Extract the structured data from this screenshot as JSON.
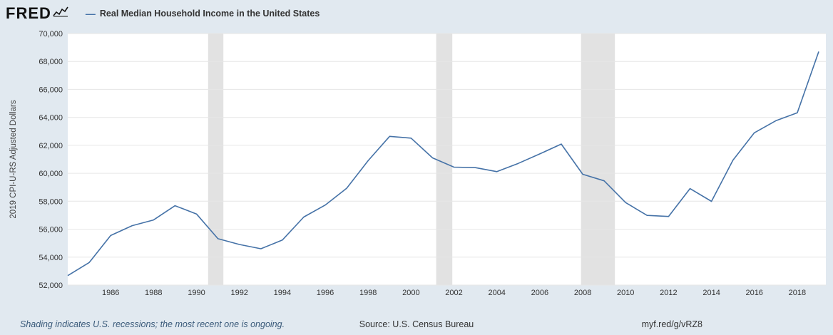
{
  "header": {
    "logo_text": "FRED",
    "legend_dash": "—"
  },
  "chart_data": {
    "type": "line",
    "title": "Real Median Household Income in the United States",
    "ylabel": "2019 CPI-U-RS Adjusted Dollars",
    "xlabel": "",
    "x": [
      1984,
      1985,
      1986,
      1987,
      1988,
      1989,
      1990,
      1991,
      1992,
      1993,
      1994,
      1995,
      1996,
      1997,
      1998,
      1999,
      2000,
      2001,
      2002,
      2003,
      2004,
      2005,
      2006,
      2007,
      2008,
      2009,
      2010,
      2011,
      2012,
      2013,
      2014,
      2015,
      2016,
      2017,
      2018,
      2019
    ],
    "values": [
      52679,
      53616,
      55547,
      56251,
      56661,
      57683,
      57087,
      55322,
      54905,
      54600,
      55221,
      56871,
      57724,
      58931,
      60904,
      62641,
      62512,
      61102,
      60440,
      60402,
      60118,
      60708,
      61389,
      62090,
      59930,
      59458,
      57904,
      56988,
      56912,
      58904,
      57992,
      60932,
      62898,
      63761,
      64324,
      68703
    ],
    "xlim": [
      1984,
      2019
    ],
    "ylim": [
      52000,
      70000
    ],
    "y_tick_step": 2000,
    "x_ticks": [
      1986,
      1988,
      1990,
      1992,
      1994,
      1996,
      1998,
      2000,
      2002,
      2004,
      2006,
      2008,
      2010,
      2012,
      2014,
      2016,
      2018
    ],
    "recessions": [
      [
        1990.54,
        1991.25
      ],
      [
        2001.17,
        2001.92
      ],
      [
        2007.92,
        2009.5
      ]
    ],
    "grid_on": true,
    "legend_position": "top-left",
    "line_color": "#4572a7",
    "recession_color": "#e2e2e2",
    "grid_color": "#e6e6e6",
    "background_color": "#e1e9f0",
    "plot_background": "#ffffff"
  },
  "footer": {
    "note": "Shading indicates U.S. recessions; the most recent one is ongoing.",
    "source": "Source: U.S. Census Bureau",
    "short_url": "myf.red/g/vRZ8"
  }
}
